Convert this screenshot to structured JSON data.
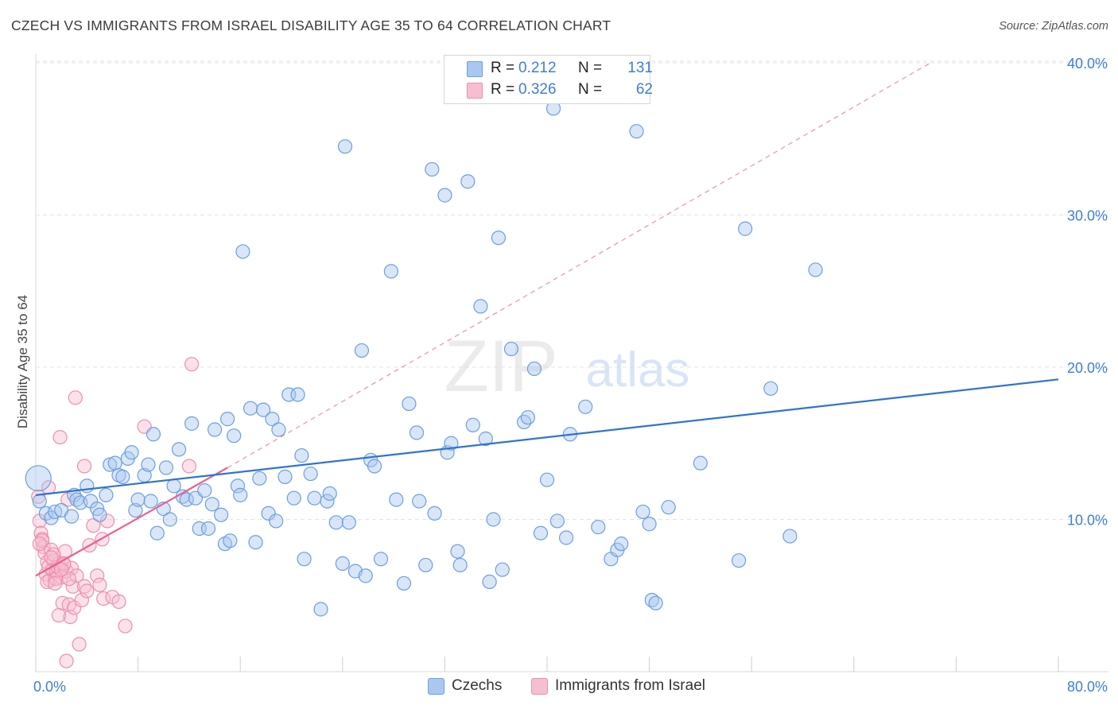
{
  "title": "CZECH VS IMMIGRANTS FROM ISRAEL DISABILITY AGE 35 TO 64 CORRELATION CHART",
  "source": "Source: ZipAtlas.com",
  "watermark": {
    "zip": "ZIP",
    "atlas": "atlas"
  },
  "legend": {
    "rows": [
      {
        "r_label": "R =",
        "r_value": "0.212",
        "n_label": "N =",
        "n_value": "131"
      },
      {
        "r_label": "R =",
        "r_value": "0.326",
        "n_label": "N =",
        "n_value": "62"
      }
    ]
  },
  "colors": {
    "czech_fill": "#a9c8f0",
    "czech_stroke": "#6c9fde",
    "czech_line": "#2f74cf",
    "israel_fill": "#f6bfd0",
    "israel_stroke": "#ec8fae",
    "israel_line": "#e8628d",
    "axis_text": "#3f7fce",
    "grid": "#e3e3e3"
  },
  "chart_data": {
    "type": "scatter",
    "title": "CZECH VS IMMIGRANTS FROM ISRAEL DISABILITY AGE 35 TO 64 CORRELATION CHART",
    "xlabel": "",
    "ylabel": "Disability Age 35 to 64",
    "xlim": [
      0,
      80
    ],
    "ylim": [
      0,
      40
    ],
    "x_tick_labels": [
      "0.0%",
      "80.0%"
    ],
    "y_ticks": [
      10,
      20,
      30,
      40
    ],
    "y_tick_labels": [
      "10.0%",
      "20.0%",
      "30.0%",
      "40.0%"
    ],
    "grid": true,
    "legend_position": "top-center",
    "series": [
      {
        "name": "Czechs",
        "r": 0.212,
        "n": 131,
        "trend": {
          "x": [
            0,
            80
          ],
          "y": [
            11.6,
            19.2
          ],
          "style": "solid"
        },
        "points": [
          [
            0.2,
            12.7
          ],
          [
            0.3,
            11.2
          ],
          [
            0.8,
            10.4
          ],
          [
            1.2,
            10.1
          ],
          [
            1.5,
            10.5
          ],
          [
            2.0,
            10.6
          ],
          [
            2.8,
            10.2
          ],
          [
            3.0,
            11.6
          ],
          [
            3.2,
            11.3
          ],
          [
            3.5,
            11.1
          ],
          [
            4.0,
            12.2
          ],
          [
            4.3,
            11.2
          ],
          [
            4.8,
            10.7
          ],
          [
            5.0,
            10.3
          ],
          [
            5.5,
            11.6
          ],
          [
            5.8,
            13.6
          ],
          [
            6.2,
            13.7
          ],
          [
            6.5,
            12.9
          ],
          [
            6.8,
            12.8
          ],
          [
            7.2,
            14.0
          ],
          [
            7.5,
            14.4
          ],
          [
            7.8,
            10.6
          ],
          [
            8.0,
            11.3
          ],
          [
            8.5,
            12.9
          ],
          [
            8.8,
            13.6
          ],
          [
            9.0,
            11.2
          ],
          [
            9.2,
            15.6
          ],
          [
            9.5,
            9.1
          ],
          [
            10.0,
            10.7
          ],
          [
            10.2,
            13.4
          ],
          [
            10.5,
            10.0
          ],
          [
            10.8,
            12.2
          ],
          [
            11.2,
            14.6
          ],
          [
            11.5,
            11.5
          ],
          [
            11.8,
            11.3
          ],
          [
            12.2,
            16.3
          ],
          [
            12.5,
            11.4
          ],
          [
            12.8,
            9.4
          ],
          [
            13.2,
            11.9
          ],
          [
            13.5,
            9.4
          ],
          [
            13.8,
            11.0
          ],
          [
            14.0,
            15.9
          ],
          [
            14.5,
            10.3
          ],
          [
            14.8,
            8.4
          ],
          [
            15.0,
            16.6
          ],
          [
            15.2,
            8.6
          ],
          [
            15.5,
            15.5
          ],
          [
            15.8,
            12.2
          ],
          [
            16.0,
            11.6
          ],
          [
            16.2,
            27.6
          ],
          [
            16.8,
            17.3
          ],
          [
            17.2,
            8.5
          ],
          [
            17.5,
            12.7
          ],
          [
            17.8,
            17.2
          ],
          [
            18.2,
            10.4
          ],
          [
            18.5,
            16.6
          ],
          [
            18.8,
            9.9
          ],
          [
            19.0,
            15.9
          ],
          [
            19.5,
            12.8
          ],
          [
            19.8,
            18.2
          ],
          [
            20.2,
            11.4
          ],
          [
            20.5,
            18.2
          ],
          [
            20.8,
            14.2
          ],
          [
            21.0,
            7.4
          ],
          [
            21.5,
            13.0
          ],
          [
            21.8,
            11.4
          ],
          [
            22.3,
            4.1
          ],
          [
            22.8,
            11.2
          ],
          [
            23.0,
            11.7
          ],
          [
            23.5,
            9.8
          ],
          [
            24.0,
            7.1
          ],
          [
            24.2,
            34.5
          ],
          [
            24.5,
            9.8
          ],
          [
            25.0,
            6.6
          ],
          [
            25.5,
            21.1
          ],
          [
            25.8,
            6.3
          ],
          [
            26.2,
            13.9
          ],
          [
            26.5,
            13.5
          ],
          [
            27.0,
            7.4
          ],
          [
            27.8,
            26.3
          ],
          [
            28.2,
            11.3
          ],
          [
            28.8,
            5.8
          ],
          [
            29.2,
            17.6
          ],
          [
            29.8,
            15.7
          ],
          [
            30.0,
            11.2
          ],
          [
            30.5,
            7.0
          ],
          [
            31.0,
            33.0
          ],
          [
            31.2,
            10.4
          ],
          [
            32.0,
            31.3
          ],
          [
            32.2,
            14.4
          ],
          [
            32.5,
            15.0
          ],
          [
            33.0,
            7.9
          ],
          [
            33.2,
            7.0
          ],
          [
            33.8,
            32.2
          ],
          [
            34.2,
            16.2
          ],
          [
            34.8,
            24.0
          ],
          [
            35.2,
            15.3
          ],
          [
            35.5,
            5.9
          ],
          [
            35.8,
            10.0
          ],
          [
            36.2,
            28.5
          ],
          [
            36.5,
            6.7
          ],
          [
            37.2,
            21.2
          ],
          [
            38.2,
            16.4
          ],
          [
            38.5,
            16.7
          ],
          [
            39.0,
            19.9
          ],
          [
            39.5,
            9.1
          ],
          [
            40.0,
            12.6
          ],
          [
            40.5,
            37.0
          ],
          [
            40.8,
            9.9
          ],
          [
            41.5,
            8.8
          ],
          [
            41.8,
            15.6
          ],
          [
            42.0,
            37.8
          ],
          [
            43.0,
            17.4
          ],
          [
            44.0,
            9.5
          ],
          [
            45.0,
            7.4
          ],
          [
            45.5,
            8.0
          ],
          [
            45.8,
            8.4
          ],
          [
            47.0,
            35.5
          ],
          [
            47.5,
            10.5
          ],
          [
            48.0,
            9.7
          ],
          [
            48.2,
            4.7
          ],
          [
            48.5,
            4.5
          ],
          [
            49.5,
            10.8
          ],
          [
            52.0,
            13.7
          ],
          [
            55.0,
            7.3
          ],
          [
            55.5,
            29.1
          ],
          [
            57.5,
            18.6
          ],
          [
            59.0,
            8.9
          ],
          [
            61.0,
            26.4
          ]
        ]
      },
      {
        "name": "Immigrants from Israel",
        "r": 0.326,
        "n": 62,
        "trend": {
          "x": [
            0,
            15
          ],
          "y": [
            6.3,
            13.4
          ],
          "style": "solid",
          "extended": {
            "x": [
              15,
              70
            ],
            "y": [
              13.4,
              40.0
            ],
            "style": "dashed"
          }
        },
        "points": [
          [
            0.2,
            11.5
          ],
          [
            0.3,
            9.9
          ],
          [
            0.4,
            9.1
          ],
          [
            0.5,
            8.7
          ],
          [
            0.6,
            8.2
          ],
          [
            0.7,
            7.8
          ],
          [
            0.8,
            6.4
          ],
          [
            0.9,
            7.2
          ],
          [
            1.0,
            6.9
          ],
          [
            1.1,
            6.0
          ],
          [
            1.2,
            8.0
          ],
          [
            1.3,
            6.7
          ],
          [
            1.4,
            7.3
          ],
          [
            1.5,
            6.1
          ],
          [
            1.6,
            6.6
          ],
          [
            1.7,
            6.9
          ],
          [
            1.8,
            7.1
          ],
          [
            1.9,
            15.4
          ],
          [
            2.0,
            6.2
          ],
          [
            2.1,
            4.5
          ],
          [
            2.2,
            7.0
          ],
          [
            2.3,
            7.9
          ],
          [
            2.4,
            6.6
          ],
          [
            2.5,
            11.3
          ],
          [
            2.6,
            4.4
          ],
          [
            2.7,
            3.6
          ],
          [
            2.8,
            6.8
          ],
          [
            2.9,
            5.6
          ],
          [
            3.0,
            4.2
          ],
          [
            3.2,
            6.3
          ],
          [
            3.4,
            1.8
          ],
          [
            3.6,
            4.7
          ],
          [
            3.8,
            5.6
          ],
          [
            4.0,
            5.3
          ],
          [
            4.2,
            8.3
          ],
          [
            4.5,
            9.6
          ],
          [
            4.8,
            6.3
          ],
          [
            5.0,
            5.7
          ],
          [
            5.3,
            4.8
          ],
          [
            5.6,
            9.9
          ],
          [
            6.0,
            4.9
          ],
          [
            6.5,
            4.6
          ],
          [
            7.0,
            3.0
          ],
          [
            8.5,
            16.1
          ],
          [
            12.0,
            13.5
          ],
          [
            12.2,
            20.2
          ],
          [
            0.5,
            8.6
          ],
          [
            1.4,
            7.7
          ],
          [
            1.6,
            6.1
          ],
          [
            2.2,
            7.1
          ],
          [
            0.9,
            5.9
          ],
          [
            1.2,
            7.5
          ],
          [
            1.8,
            3.7
          ],
          [
            2.4,
            0.7
          ],
          [
            3.1,
            18.0
          ],
          [
            3.8,
            13.5
          ],
          [
            5.2,
            8.7
          ],
          [
            1.0,
            12.1
          ],
          [
            2.6,
            6.1
          ],
          [
            1.5,
            5.8
          ],
          [
            0.3,
            8.4
          ],
          [
            2.0,
            6.7
          ]
        ]
      }
    ]
  }
}
